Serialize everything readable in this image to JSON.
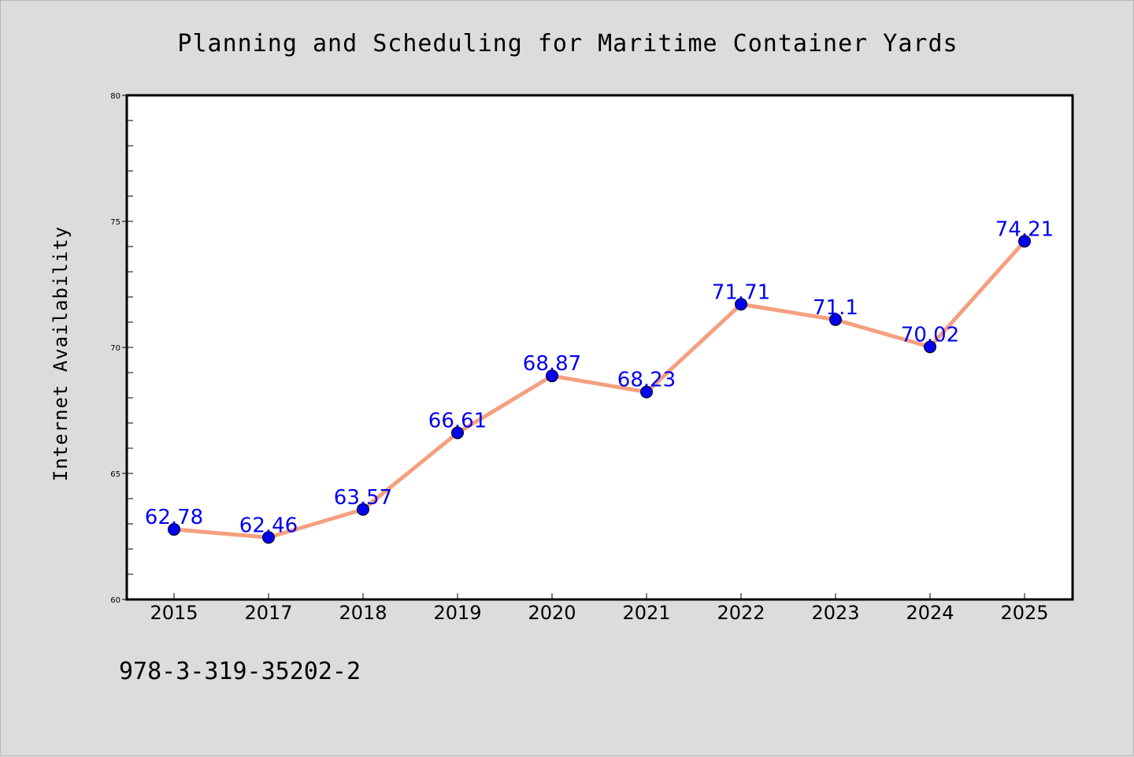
{
  "figure": {
    "footer_code": "978-3-319-35202-2"
  },
  "chart_data": {
    "type": "line",
    "title": "Planning and Scheduling for Maritime Container Yards",
    "xlabel": "",
    "ylabel": "Internet Availability",
    "categories": [
      "2015",
      "2017",
      "2018",
      "2019",
      "2020",
      "2021",
      "2022",
      "2023",
      "2024",
      "2025"
    ],
    "series": [
      {
        "values": [
          62.78,
          62.46,
          63.57,
          66.61,
          68.87,
          68.23,
          71.71,
          71.1,
          70.02,
          74.21
        ],
        "labels": [
          "62.78",
          "62.46",
          "63.57",
          "66.61",
          "68.87",
          "68.23",
          "71.71",
          "71.1",
          "70.02",
          "74.21"
        ],
        "line_color": "#f4a07f",
        "marker_color": "#0000ee",
        "label_color": "#0000ee"
      }
    ],
    "ylim": [
      60,
      80
    ],
    "yticks": [
      60,
      65,
      70,
      75,
      80
    ],
    "ytick_labels": [
      "60",
      "65",
      "70",
      "75",
      "80"
    ],
    "grid": false,
    "legend": "none",
    "plot_background": "#ffffff",
    "figure_background": "#dcdcdc"
  }
}
